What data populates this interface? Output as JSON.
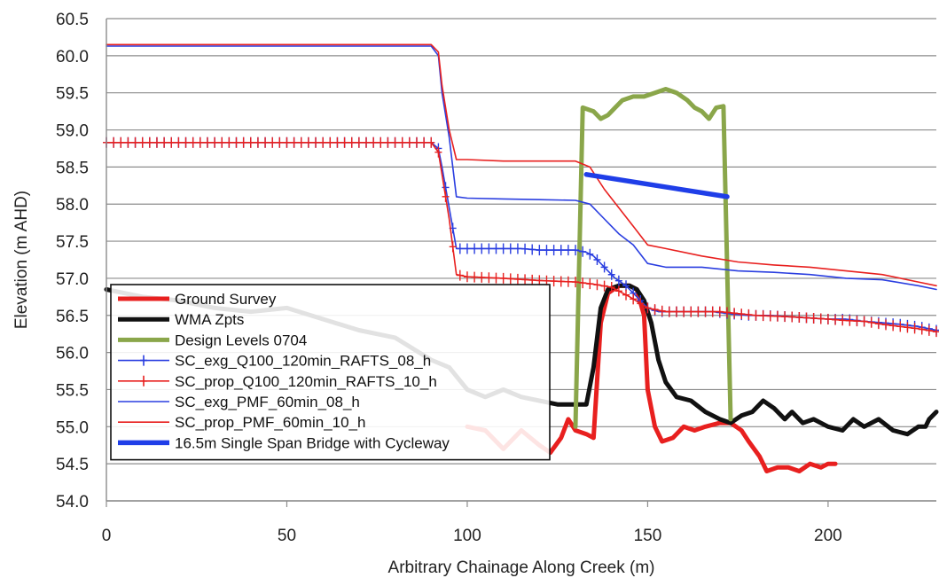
{
  "chart_data": {
    "type": "line",
    "xlabel": "Arbitrary Chainage Along Creek (m)",
    "ylabel": "Elevation (m AHD)",
    "xlim": [
      0,
      230
    ],
    "ylim": [
      54.0,
      60.5
    ],
    "x_ticks": [
      "0",
      "50",
      "100",
      "150",
      "200"
    ],
    "y_ticks": [
      "54.0",
      "54.5",
      "55.0",
      "55.5",
      "56.0",
      "56.5",
      "57.0",
      "57.5",
      "58.0",
      "58.5",
      "59.0",
      "59.5",
      "60.0",
      "60.5"
    ],
    "grid": "horizontal",
    "legend_position": "bottom-left",
    "series": [
      {
        "name": "Ground Survey",
        "color": "#e8201f",
        "style": "thick",
        "points": [
          [
            100,
            55.0
          ],
          [
            105,
            54.95
          ],
          [
            110,
            54.7
          ],
          [
            115,
            54.95
          ],
          [
            120,
            54.75
          ],
          [
            123,
            54.65
          ],
          [
            126,
            54.85
          ],
          [
            128,
            55.1
          ],
          [
            130,
            54.95
          ],
          [
            133,
            54.9
          ],
          [
            135,
            54.85
          ],
          [
            137,
            56.4
          ],
          [
            139,
            56.8
          ],
          [
            142,
            56.9
          ],
          [
            145,
            56.9
          ],
          [
            147,
            56.85
          ],
          [
            149,
            56.5
          ],
          [
            150,
            55.5
          ],
          [
            152,
            55.0
          ],
          [
            154,
            54.8
          ],
          [
            157,
            54.85
          ],
          [
            160,
            55.0
          ],
          [
            163,
            54.95
          ],
          [
            166,
            55.0
          ],
          [
            170,
            55.05
          ],
          [
            173,
            55.05
          ],
          [
            176,
            54.95
          ],
          [
            178,
            54.8
          ],
          [
            181,
            54.6
          ],
          [
            183,
            54.4
          ],
          [
            186,
            54.45
          ],
          [
            189,
            54.45
          ],
          [
            192,
            54.4
          ],
          [
            195,
            54.5
          ],
          [
            198,
            54.45
          ],
          [
            200,
            54.5
          ],
          [
            202,
            54.5
          ]
        ]
      },
      {
        "name": "WMA Zpts",
        "color": "#111111",
        "style": "thick",
        "points": [
          [
            0,
            56.85
          ],
          [
            10,
            56.75
          ],
          [
            20,
            56.7
          ],
          [
            30,
            56.6
          ],
          [
            40,
            56.55
          ],
          [
            50,
            56.6
          ],
          [
            60,
            56.45
          ],
          [
            70,
            56.3
          ],
          [
            80,
            56.2
          ],
          [
            90,
            55.9
          ],
          [
            95,
            55.8
          ],
          [
            100,
            55.5
          ],
          [
            105,
            55.4
          ],
          [
            110,
            55.5
          ],
          [
            115,
            55.4
          ],
          [
            120,
            55.35
          ],
          [
            125,
            55.3
          ],
          [
            130,
            55.3
          ],
          [
            133,
            55.3
          ],
          [
            135,
            55.8
          ],
          [
            137,
            56.6
          ],
          [
            139,
            56.85
          ],
          [
            142,
            56.9
          ],
          [
            145,
            56.9
          ],
          [
            147,
            56.85
          ],
          [
            149,
            56.7
          ],
          [
            151,
            56.4
          ],
          [
            153,
            55.9
          ],
          [
            155,
            55.6
          ],
          [
            158,
            55.4
          ],
          [
            162,
            55.35
          ],
          [
            166,
            55.2
          ],
          [
            170,
            55.1
          ],
          [
            173,
            55.05
          ],
          [
            176,
            55.15
          ],
          [
            179,
            55.2
          ],
          [
            182,
            55.35
          ],
          [
            185,
            55.25
          ],
          [
            188,
            55.1
          ],
          [
            190,
            55.2
          ],
          [
            193,
            55.05
          ],
          [
            196,
            55.1
          ],
          [
            200,
            55.0
          ],
          [
            204,
            54.95
          ],
          [
            207,
            55.1
          ],
          [
            210,
            55.0
          ],
          [
            214,
            55.1
          ],
          [
            218,
            54.95
          ],
          [
            222,
            54.9
          ],
          [
            225,
            55.0
          ],
          [
            227,
            55.0
          ],
          [
            228,
            55.1
          ],
          [
            230,
            55.2
          ]
        ]
      },
      {
        "name": "Design Levels 0704",
        "color": "#8aa64a",
        "style": "thick",
        "points": [
          [
            130,
            55.0
          ],
          [
            132,
            59.3
          ],
          [
            135,
            59.25
          ],
          [
            137,
            59.15
          ],
          [
            139,
            59.2
          ],
          [
            141,
            59.3
          ],
          [
            143,
            59.4
          ],
          [
            146,
            59.45
          ],
          [
            149,
            59.45
          ],
          [
            152,
            59.5
          ],
          [
            155,
            59.55
          ],
          [
            158,
            59.5
          ],
          [
            161,
            59.4
          ],
          [
            163,
            59.3
          ],
          [
            165,
            59.25
          ],
          [
            167,
            59.15
          ],
          [
            169,
            59.3
          ],
          [
            171,
            59.32
          ],
          [
            173,
            55.1
          ]
        ]
      },
      {
        "name": "SC_exg_Q100_120min_RAFTS_08_h",
        "color": "#2a3ee0",
        "style": "marker-plus",
        "points": [
          [
            0,
            58.83
          ],
          [
            20,
            58.83
          ],
          [
            40,
            58.83
          ],
          [
            60,
            58.83
          ],
          [
            80,
            58.83
          ],
          [
            90,
            58.83
          ],
          [
            92,
            58.75
          ],
          [
            93,
            58.5
          ],
          [
            95,
            57.95
          ],
          [
            97,
            57.4
          ],
          [
            100,
            57.4
          ],
          [
            105,
            57.4
          ],
          [
            110,
            57.4
          ],
          [
            115,
            57.4
          ],
          [
            120,
            57.38
          ],
          [
            125,
            57.38
          ],
          [
            130,
            57.38
          ],
          [
            133,
            57.35
          ],
          [
            135,
            57.3
          ],
          [
            138,
            57.15
          ],
          [
            141,
            57.0
          ],
          [
            144,
            56.9
          ],
          [
            147,
            56.75
          ],
          [
            150,
            56.6
          ],
          [
            153,
            56.55
          ],
          [
            158,
            56.55
          ],
          [
            163,
            56.55
          ],
          [
            168,
            56.55
          ],
          [
            173,
            56.52
          ],
          [
            178,
            56.5
          ],
          [
            183,
            56.5
          ],
          [
            190,
            56.48
          ],
          [
            200,
            56.45
          ],
          [
            205,
            56.45
          ],
          [
            210,
            56.42
          ],
          [
            215,
            56.4
          ],
          [
            220,
            56.38
          ],
          [
            225,
            56.35
          ],
          [
            230,
            56.3
          ]
        ]
      },
      {
        "name": "SC_prop_Q100_120min_RAFTS_10_h",
        "color": "#e8201f",
        "style": "marker-plus",
        "points": [
          [
            0,
            58.83
          ],
          [
            20,
            58.83
          ],
          [
            40,
            58.83
          ],
          [
            60,
            58.83
          ],
          [
            80,
            58.83
          ],
          [
            90,
            58.83
          ],
          [
            92,
            58.7
          ],
          [
            93,
            58.4
          ],
          [
            95,
            57.8
          ],
          [
            97,
            57.05
          ],
          [
            100,
            57.02
          ],
          [
            110,
            57.0
          ],
          [
            120,
            56.97
          ],
          [
            130,
            56.95
          ],
          [
            135,
            56.92
          ],
          [
            140,
            56.88
          ],
          [
            145,
            56.75
          ],
          [
            150,
            56.6
          ],
          [
            155,
            56.55
          ],
          [
            160,
            56.55
          ],
          [
            170,
            56.55
          ],
          [
            180,
            56.5
          ],
          [
            190,
            56.48
          ],
          [
            200,
            56.45
          ],
          [
            205,
            56.43
          ],
          [
            210,
            56.42
          ],
          [
            215,
            56.38
          ],
          [
            220,
            56.35
          ],
          [
            225,
            56.32
          ],
          [
            230,
            56.28
          ]
        ]
      },
      {
        "name": "SC_exg_PMF_60min_08_h",
        "color": "#2a3ee0",
        "style": "thin",
        "points": [
          [
            0,
            60.13
          ],
          [
            20,
            60.13
          ],
          [
            40,
            60.13
          ],
          [
            60,
            60.13
          ],
          [
            80,
            60.13
          ],
          [
            90,
            60.13
          ],
          [
            92,
            60.0
          ],
          [
            93,
            59.5
          ],
          [
            95,
            58.9
          ],
          [
            97,
            58.1
          ],
          [
            100,
            58.08
          ],
          [
            110,
            58.07
          ],
          [
            120,
            58.06
          ],
          [
            130,
            58.05
          ],
          [
            134,
            58.0
          ],
          [
            138,
            57.8
          ],
          [
            142,
            57.6
          ],
          [
            146,
            57.45
          ],
          [
            150,
            57.2
          ],
          [
            155,
            57.15
          ],
          [
            165,
            57.15
          ],
          [
            175,
            57.1
          ],
          [
            185,
            57.08
          ],
          [
            195,
            57.05
          ],
          [
            205,
            57.0
          ],
          [
            215,
            56.98
          ],
          [
            225,
            56.9
          ],
          [
            230,
            56.85
          ]
        ]
      },
      {
        "name": "SC_prop_PMF_60min_10_h",
        "color": "#e8201f",
        "style": "thin",
        "points": [
          [
            0,
            60.15
          ],
          [
            20,
            60.15
          ],
          [
            40,
            60.15
          ],
          [
            60,
            60.15
          ],
          [
            80,
            60.15
          ],
          [
            90,
            60.15
          ],
          [
            92,
            60.05
          ],
          [
            93,
            59.6
          ],
          [
            95,
            59.0
          ],
          [
            97,
            58.6
          ],
          [
            100,
            58.6
          ],
          [
            110,
            58.58
          ],
          [
            120,
            58.58
          ],
          [
            130,
            58.58
          ],
          [
            134,
            58.5
          ],
          [
            138,
            58.2
          ],
          [
            142,
            57.95
          ],
          [
            146,
            57.7
          ],
          [
            150,
            57.45
          ],
          [
            155,
            57.4
          ],
          [
            165,
            57.3
          ],
          [
            175,
            57.22
          ],
          [
            185,
            57.18
          ],
          [
            195,
            57.15
          ],
          [
            205,
            57.1
          ],
          [
            215,
            57.05
          ],
          [
            225,
            56.95
          ],
          [
            230,
            56.9
          ]
        ]
      },
      {
        "name": "16.5m Single Span Bridge with Cycleway",
        "color": "#1f3ee8",
        "style": "bold",
        "points": [
          [
            133,
            58.4
          ],
          [
            172,
            58.1
          ]
        ]
      }
    ]
  }
}
